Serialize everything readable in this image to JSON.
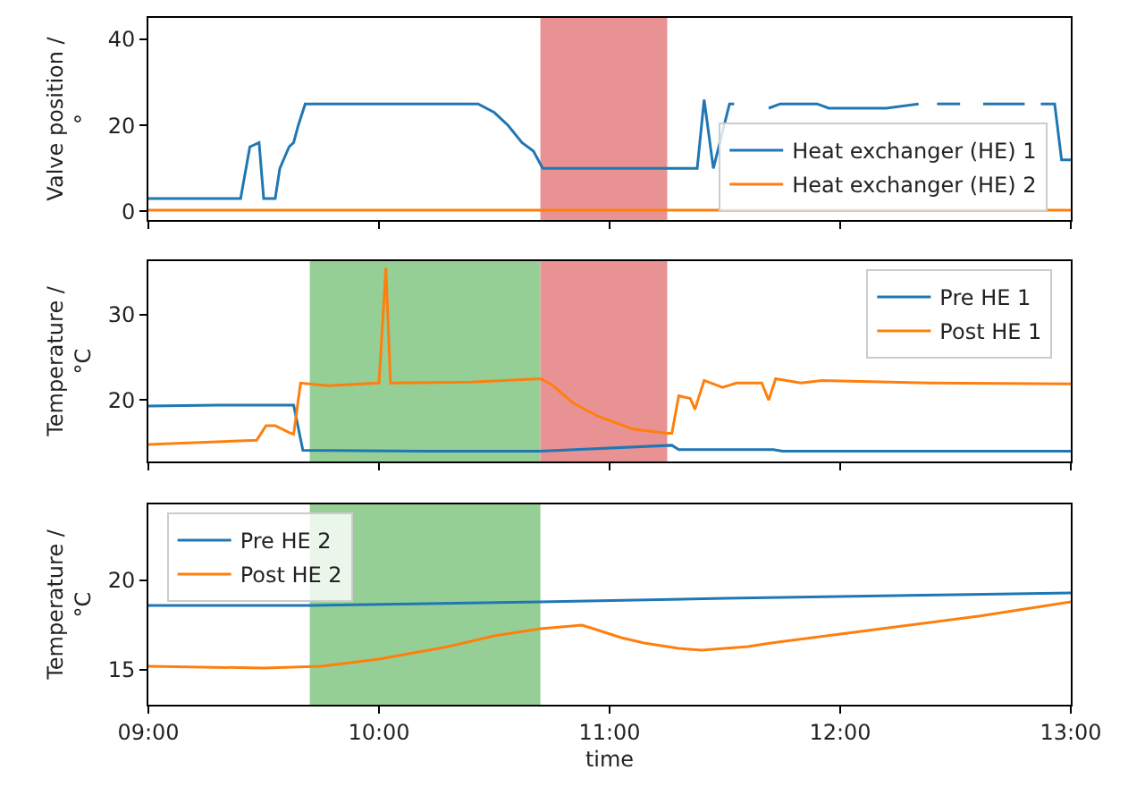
{
  "chart_data": [
    {
      "type": "line",
      "ylabel": "Valve position /\n°",
      "xlim": [
        9,
        13
      ],
      "xticks": [
        {
          "value": 9,
          "label": null
        },
        {
          "value": 10,
          "label": null
        },
        {
          "value": 11,
          "label": null
        },
        {
          "value": 12,
          "label": null
        },
        {
          "value": 13,
          "label": null
        }
      ],
      "ylim": [
        -2,
        45
      ],
      "yticks": [
        0,
        20,
        40
      ],
      "tick_labels": "y",
      "legend": "bottom right",
      "bands": [
        {
          "axis": "x",
          "from": 10.7,
          "to": 11.25,
          "color": "#e99293"
        }
      ],
      "series": [
        {
          "name": "Heat exchanger (HE) 1",
          "color": "#1f77b4",
          "x": [
            9,
            9.4,
            9.44,
            9.48,
            9.5,
            9.55,
            9.57,
            9.61,
            9.63,
            9.65,
            9.68,
            10.0,
            10.43,
            10.5,
            10.56,
            10.62,
            10.67,
            10.71,
            11.0,
            11.3,
            11.38,
            11.41,
            11.45,
            11.52,
            11.54,
            11.58,
            11.67,
            11.69,
            11.74,
            11.9,
            11.95,
            12.2,
            12.34,
            12.37,
            12.42,
            12.52,
            12.56,
            12.62,
            12.8,
            12.84,
            12.87,
            12.93,
            12.96,
            13
          ],
          "values": [
            3,
            3,
            15,
            16,
            3,
            3,
            10,
            15,
            16,
            20,
            25,
            25,
            25,
            23,
            20,
            16,
            14,
            10,
            10,
            10,
            10,
            26,
            10,
            25,
            25,
            null,
            null,
            24,
            25,
            25,
            24,
            24,
            25,
            null,
            25,
            25,
            null,
            25,
            25,
            null,
            25,
            25,
            12,
            12
          ]
        },
        {
          "name": "Heat exchanger (HE) 2",
          "color": "#ff7f0e",
          "x": [
            9,
            13
          ],
          "values": [
            0.3,
            0.3
          ]
        }
      ]
    },
    {
      "type": "line",
      "ylabel": "Temperature /\n°C",
      "xlim": [
        9,
        13
      ],
      "xticks": [
        {
          "value": 9,
          "label": null
        },
        {
          "value": 10,
          "label": null
        },
        {
          "value": 11,
          "label": null
        },
        {
          "value": 12,
          "label": null
        },
        {
          "value": 13,
          "label": null
        }
      ],
      "ylim": [
        12.8,
        36.3
      ],
      "yticks": [
        20,
        30
      ],
      "tick_labels": "y",
      "legend": "top right",
      "bands": [
        {
          "axis": "x",
          "from": 9.7,
          "to": 10.7,
          "color": "#95cf95"
        },
        {
          "axis": "x",
          "from": 10.7,
          "to": 11.25,
          "color": "#e99293"
        }
      ],
      "series": [
        {
          "name": "Pre HE 1",
          "color": "#1f77b4",
          "x": [
            9,
            9.3,
            9.63,
            9.67,
            10.2,
            10.7,
            11.27,
            11.3,
            11.71,
            11.75,
            12.5,
            13
          ],
          "values": [
            19.3,
            19.4,
            19.4,
            14.1,
            14,
            14,
            14.7,
            14.2,
            14.2,
            14,
            14,
            14
          ]
        },
        {
          "name": "Post HE 1",
          "color": "#ff7f0e",
          "x": [
            9,
            9.47,
            9.51,
            9.55,
            9.61,
            9.63,
            9.66,
            9.78,
            10.0,
            10.03,
            10.05,
            10.4,
            10.7,
            10.75,
            10.84,
            10.95,
            11.1,
            11.25,
            11.27,
            11.3,
            11.35,
            11.37,
            11.41,
            11.49,
            11.55,
            11.66,
            11.69,
            11.72,
            11.83,
            11.92,
            12.39,
            13
          ],
          "values": [
            14.8,
            15.3,
            17,
            17,
            16.2,
            16,
            22,
            21.7,
            22,
            35.5,
            22,
            22.1,
            22.5,
            21.8,
            19.7,
            18.1,
            16.6,
            16.1,
            16.1,
            20.5,
            20.2,
            18.9,
            22.3,
            21.5,
            22,
            22,
            20,
            22.5,
            22,
            22.3,
            22,
            21.9
          ]
        }
      ]
    },
    {
      "type": "line",
      "xlabel": "time",
      "ylabel": "Temperature /\n°C",
      "xlim": [
        9,
        13
      ],
      "xticks": [
        {
          "value": 9,
          "label": "09:00"
        },
        {
          "value": 10,
          "label": "10:00"
        },
        {
          "value": 11,
          "label": "11:00"
        },
        {
          "value": 12,
          "label": "12:00"
        },
        {
          "value": 13,
          "label": "13:00"
        }
      ],
      "ylim": [
        13.05,
        24.25
      ],
      "yticks": [
        15,
        20
      ],
      "legend": "top left",
      "bands": [
        {
          "axis": "x",
          "from": 9.7,
          "to": 10.7,
          "color": "#95cf95"
        }
      ],
      "series": [
        {
          "name": "Pre HE 2",
          "color": "#1f77b4",
          "x": [
            9,
            9.7,
            10.7,
            11.5,
            12.5,
            13
          ],
          "values": [
            18.6,
            18.6,
            18.8,
            19.0,
            19.2,
            19.3
          ]
        },
        {
          "name": "Post HE 2",
          "color": "#ff7f0e",
          "x": [
            9,
            9.5,
            9.75,
            10.0,
            10.3,
            10.5,
            10.7,
            10.88,
            10.93,
            11.05,
            11.15,
            11.3,
            11.4,
            11.6,
            11.7,
            12.0,
            12.3,
            12.6,
            12.8,
            13
          ],
          "values": [
            15.2,
            15.1,
            15.2,
            15.6,
            16.3,
            16.9,
            17.3,
            17.5,
            17.3,
            16.8,
            16.5,
            16.2,
            16.1,
            16.3,
            16.5,
            17.0,
            17.5,
            18.0,
            18.4,
            18.8
          ]
        }
      ]
    }
  ]
}
